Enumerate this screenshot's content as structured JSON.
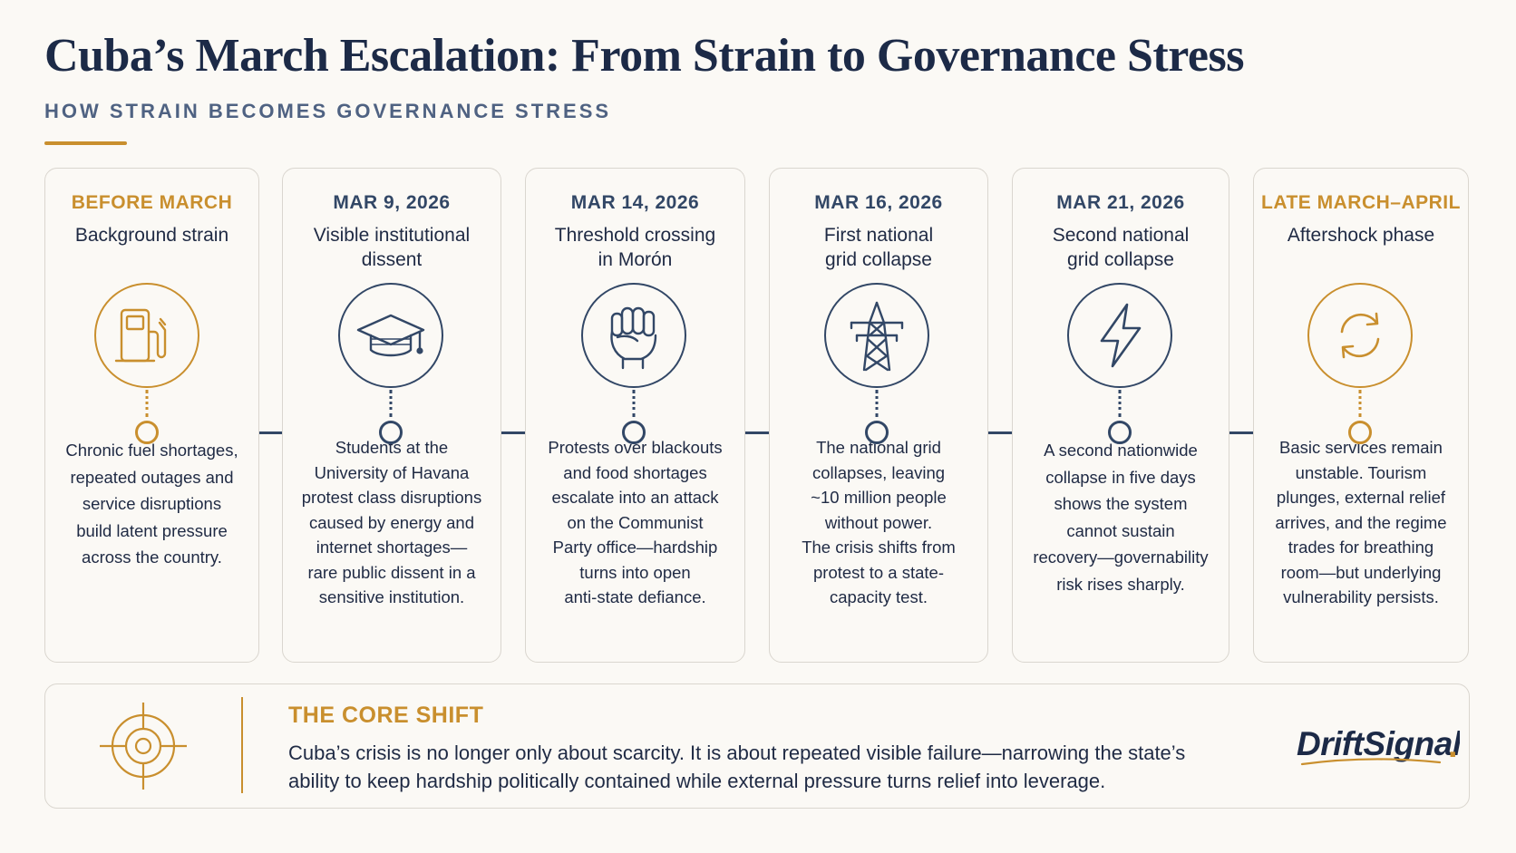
{
  "title": "Cuba’s March Escalation: From Strain to Governance Stress",
  "subtitle": "HOW STRAIN BECOMES GOVERNANCE STRESS",
  "colors": {
    "accent_gold": "#c98f2e",
    "navy": "#324766",
    "text_dark": "#1f2a44",
    "card_border": "#dad6cf",
    "background": "#fbf9f5"
  },
  "stages": [
    {
      "date": "BEFORE MARCH",
      "headline_lines": [
        "Background strain"
      ],
      "icon": "fuel-pump-icon",
      "tone": "gold",
      "body_lines": [
        "Chronic fuel shortages,",
        "repeated outages and",
        "service disruptions",
        "build latent pressure",
        "across the country."
      ]
    },
    {
      "date": "MAR 9, 2026",
      "headline_lines": [
        "Visible institutional",
        "dissent"
      ],
      "icon": "graduation-cap-icon",
      "tone": "navy",
      "body_lines": [
        "Students at the",
        "University of Havana",
        "protest class disruptions",
        "caused by energy and",
        "internet shortages—",
        "rare public dissent in a",
        "sensitive institution."
      ]
    },
    {
      "date": "MAR 14, 2026",
      "headline_lines": [
        "Threshold crossing",
        "in Morón"
      ],
      "icon": "raised-fist-icon",
      "tone": "navy",
      "body_lines": [
        "Protests over blackouts",
        "and food shortages",
        "escalate into an attack",
        "on the Communist",
        "Party office—hardship",
        "turns into open",
        "anti-state defiance."
      ]
    },
    {
      "date": "MAR 16, 2026",
      "headline_lines": [
        "First national",
        "grid collapse"
      ],
      "icon": "transmission-tower-icon",
      "tone": "navy",
      "body_lines": [
        "The national grid",
        "collapses, leaving",
        "~10 million people",
        "without power.",
        "The crisis shifts from",
        "protest to a state-",
        "capacity test."
      ]
    },
    {
      "date": "MAR 21, 2026",
      "headline_lines": [
        "Second national",
        "grid collapse"
      ],
      "icon": "lightning-bolt-icon",
      "tone": "navy",
      "body_lines": [
        "A second nationwide",
        "collapse in five days",
        "shows the system",
        "cannot sustain",
        "recovery—governability",
        "risk rises sharply."
      ]
    },
    {
      "date": "LATE MARCH–APRIL",
      "headline_lines": [
        "Aftershock phase"
      ],
      "icon": "cycle-arrows-icon",
      "tone": "gold",
      "body_lines": [
        "Basic services remain",
        "unstable. Tourism",
        "plunges, external relief",
        "arrives, and the regime",
        "trades for breathing",
        "room—but underlying",
        "vulnerability persists."
      ]
    }
  ],
  "core_shift": {
    "icon": "target-crosshair-icon",
    "heading": "THE CORE SHIFT",
    "text": "Cuba’s crisis is no longer only about scarcity. It is about repeated visible failure—narrowing the state’s ability to keep hardship politically contained while external pressure turns relief into leverage."
  },
  "logo": {
    "text": "DriftSignals",
    "dot": "."
  }
}
